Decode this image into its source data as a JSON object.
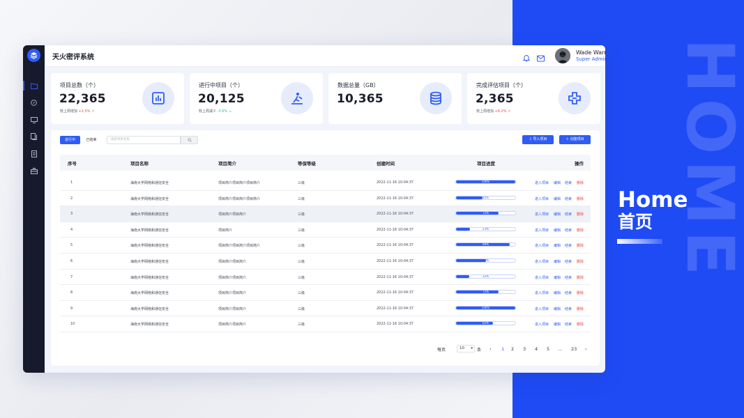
{
  "app": {
    "title": "天火密评系统"
  },
  "user": {
    "name": "Wade Warren",
    "role": "Super Admin"
  },
  "decor": {
    "big_word": "HOME",
    "title": "Home",
    "subtitle": "首页"
  },
  "stats": [
    {
      "label": "项目总数（个）",
      "value": "22,365",
      "trend_text": "较上周增加",
      "trend_value": "+1.5%",
      "trend_dir": "up",
      "icon": "chart-icon"
    },
    {
      "label": "进行中项目（个）",
      "value": "20,125",
      "trend_text": "较上周减少",
      "trend_value": "-3.6%",
      "trend_dir": "down",
      "icon": "rowing-icon"
    },
    {
      "label": "数据总量（GB）",
      "value": "10,365",
      "trend_text": "",
      "trend_value": "",
      "trend_dir": "",
      "icon": "database-icon"
    },
    {
      "label": "完成评估项目（个）",
      "value": "2,365",
      "trend_text": "较上周增加",
      "trend_value": "+6.2%",
      "trend_dir": "up",
      "icon": "medical-cross-icon"
    }
  ],
  "filters": {
    "tab_active": "进行中",
    "tab_done": "已结束",
    "search_placeholder": "搜索项目名称"
  },
  "actions": {
    "import": "导入项目",
    "create": "创建项目"
  },
  "table": {
    "headers": [
      "序号",
      "项目名称",
      "项目简介",
      "等保等级",
      "创建时间",
      "项目进度",
      "操作"
    ],
    "ops": {
      "enter": "进入项目",
      "edit": "编辑",
      "end": "结束",
      "delete": "删除"
    },
    "rows": [
      {
        "no": "1",
        "name": "海南大学网络和通信安全",
        "intro": "项目简介项目简介项目简介",
        "level": "三级",
        "time": "2022-11-16 10:04:37",
        "progress": 100
      },
      {
        "no": "2",
        "name": "海南大学网络和通信安全",
        "intro": "项目简介项目简介项目简介",
        "level": "三级",
        "time": "2022-11-16 10:04:37",
        "progress": 45
      },
      {
        "no": "3",
        "name": "海南大学网络和通信安全",
        "intro": "项目简介项目简介",
        "level": "三级",
        "time": "2022-11-16 10:04:37",
        "progress": 72
      },
      {
        "no": "4",
        "name": "海南大学网络和通信安全",
        "intro": "项目简介",
        "level": "三级",
        "time": "2022-11-16 10:04:37",
        "progress": 23
      },
      {
        "no": "5",
        "name": "海南大学网络和通信安全",
        "intro": "项目简介项目简介项目简介",
        "level": "三级",
        "time": "2022-11-16 10:04:37",
        "progress": 90
      },
      {
        "no": "6",
        "name": "海南大学网络和通信安全",
        "intro": "项目简介项目简介",
        "level": "三级",
        "time": "2022-11-16 10:04:37",
        "progress": 50
      },
      {
        "no": "7",
        "name": "海南大学网络和通信安全",
        "intro": "项目简介项目简介",
        "level": "三级",
        "time": "2022-11-16 10:04:37",
        "progress": 22
      },
      {
        "no": "8",
        "name": "海南大学网络和通信安全",
        "intro": "项目简介项目简介",
        "level": "三级",
        "time": "2022-11-16 10:04:37",
        "progress": 72
      },
      {
        "no": "9",
        "name": "海南大学网络和通信安全",
        "intro": "项目简介项目简介",
        "level": "三级",
        "time": "2022-11-16 10:04:37",
        "progress": 100
      },
      {
        "no": "10",
        "name": "海南大学网络和通信安全",
        "intro": "项目简介项目简介",
        "level": "三级",
        "time": "2022-11-16 10:04:37",
        "progress": 62
      }
    ]
  },
  "pagination": {
    "prefix": "每页",
    "size": "10",
    "suffix": "条",
    "pages": [
      "1",
      "2",
      "3",
      "4",
      "5",
      "...",
      "23"
    ],
    "current": "1",
    "prev": "‹",
    "next": "›"
  },
  "colors": {
    "accent": "#2f5cf6",
    "danger": "#f04848",
    "success": "#1fc48a",
    "sidebar": "#161a2c",
    "brand_bg": "#1f4bf5"
  }
}
